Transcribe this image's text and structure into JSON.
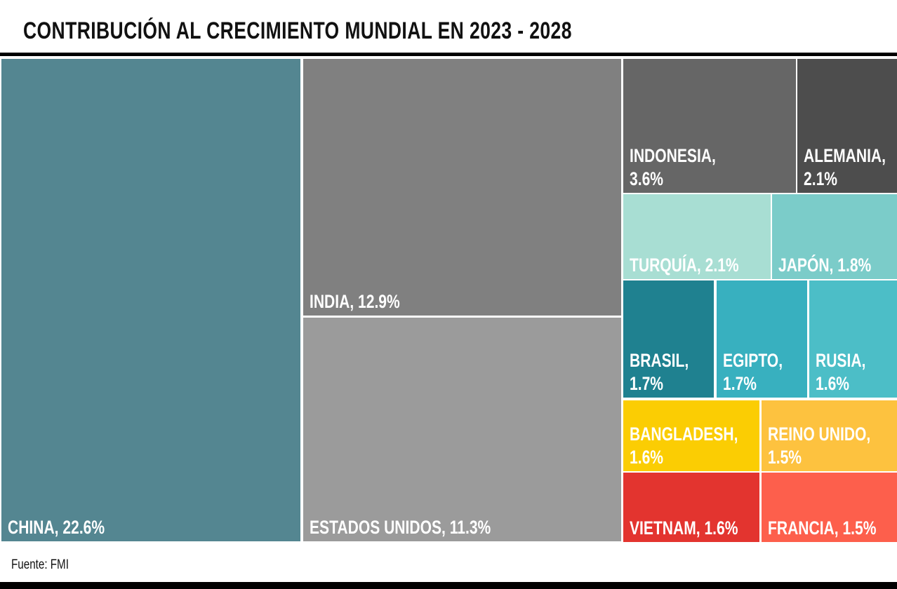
{
  "title": "CONTRIBUCIÓN AL CRECIMIENTO MUNDIAL EN 2023 - 2028",
  "source": "Fuente: FMI",
  "chart_data": {
    "type": "treemap",
    "title": "CONTRIBUCIÓN AL CRECIMIENTO MUNDIAL EN 2023 - 2028",
    "unit": "%",
    "items": [
      {
        "name": "CHINA",
        "value": 22.6,
        "label": "CHINA, 22.6%",
        "color": "#548691"
      },
      {
        "name": "INDIA",
        "value": 12.9,
        "label": "INDIA, 12.9%",
        "color": "#808080"
      },
      {
        "name": "ESTADOS UNIDOS",
        "value": 11.3,
        "label": "ESTADOS UNIDOS, 11.3%",
        "color": "#9b9b9b"
      },
      {
        "name": "INDONESIA",
        "value": 3.6,
        "label": "INDONESIA,\n3.6%",
        "color": "#666666"
      },
      {
        "name": "ALEMANIA",
        "value": 2.1,
        "label": "ALEMANIA,\n2.1%",
        "color": "#4d4d4d"
      },
      {
        "name": "TURQUÍA",
        "value": 2.1,
        "label": "TURQUÍA, 2.1%",
        "color": "#a8ded3"
      },
      {
        "name": "JAPÓN",
        "value": 1.8,
        "label": "JAPÓN, 1.8%",
        "color": "#7bccc9"
      },
      {
        "name": "BRASIL",
        "value": 1.7,
        "label": "BRASIL,\n1.7%",
        "color": "#1f8190"
      },
      {
        "name": "EGIPTO",
        "value": 1.7,
        "label": "EGIPTO,\n1.7%",
        "color": "#38b0bf"
      },
      {
        "name": "RUSIA",
        "value": 1.6,
        "label": "RUSIA,\n1.6%",
        "color": "#4cbec7"
      },
      {
        "name": "BANGLADESH",
        "value": 1.6,
        "label": "BANGLADESH,\n1.6%",
        "color": "#fbcd03"
      },
      {
        "name": "REINO UNIDO",
        "value": 1.5,
        "label": "REINO UNIDO,\n1.5%",
        "color": "#fdc23f"
      },
      {
        "name": "VIETNAM",
        "value": 1.6,
        "label": "VIETNAM, 1.6%",
        "color": "#e3342f"
      },
      {
        "name": "FRANCIA",
        "value": 1.5,
        "label": "FRANCIA, 1.5%",
        "color": "#fd5f4c"
      }
    ]
  }
}
